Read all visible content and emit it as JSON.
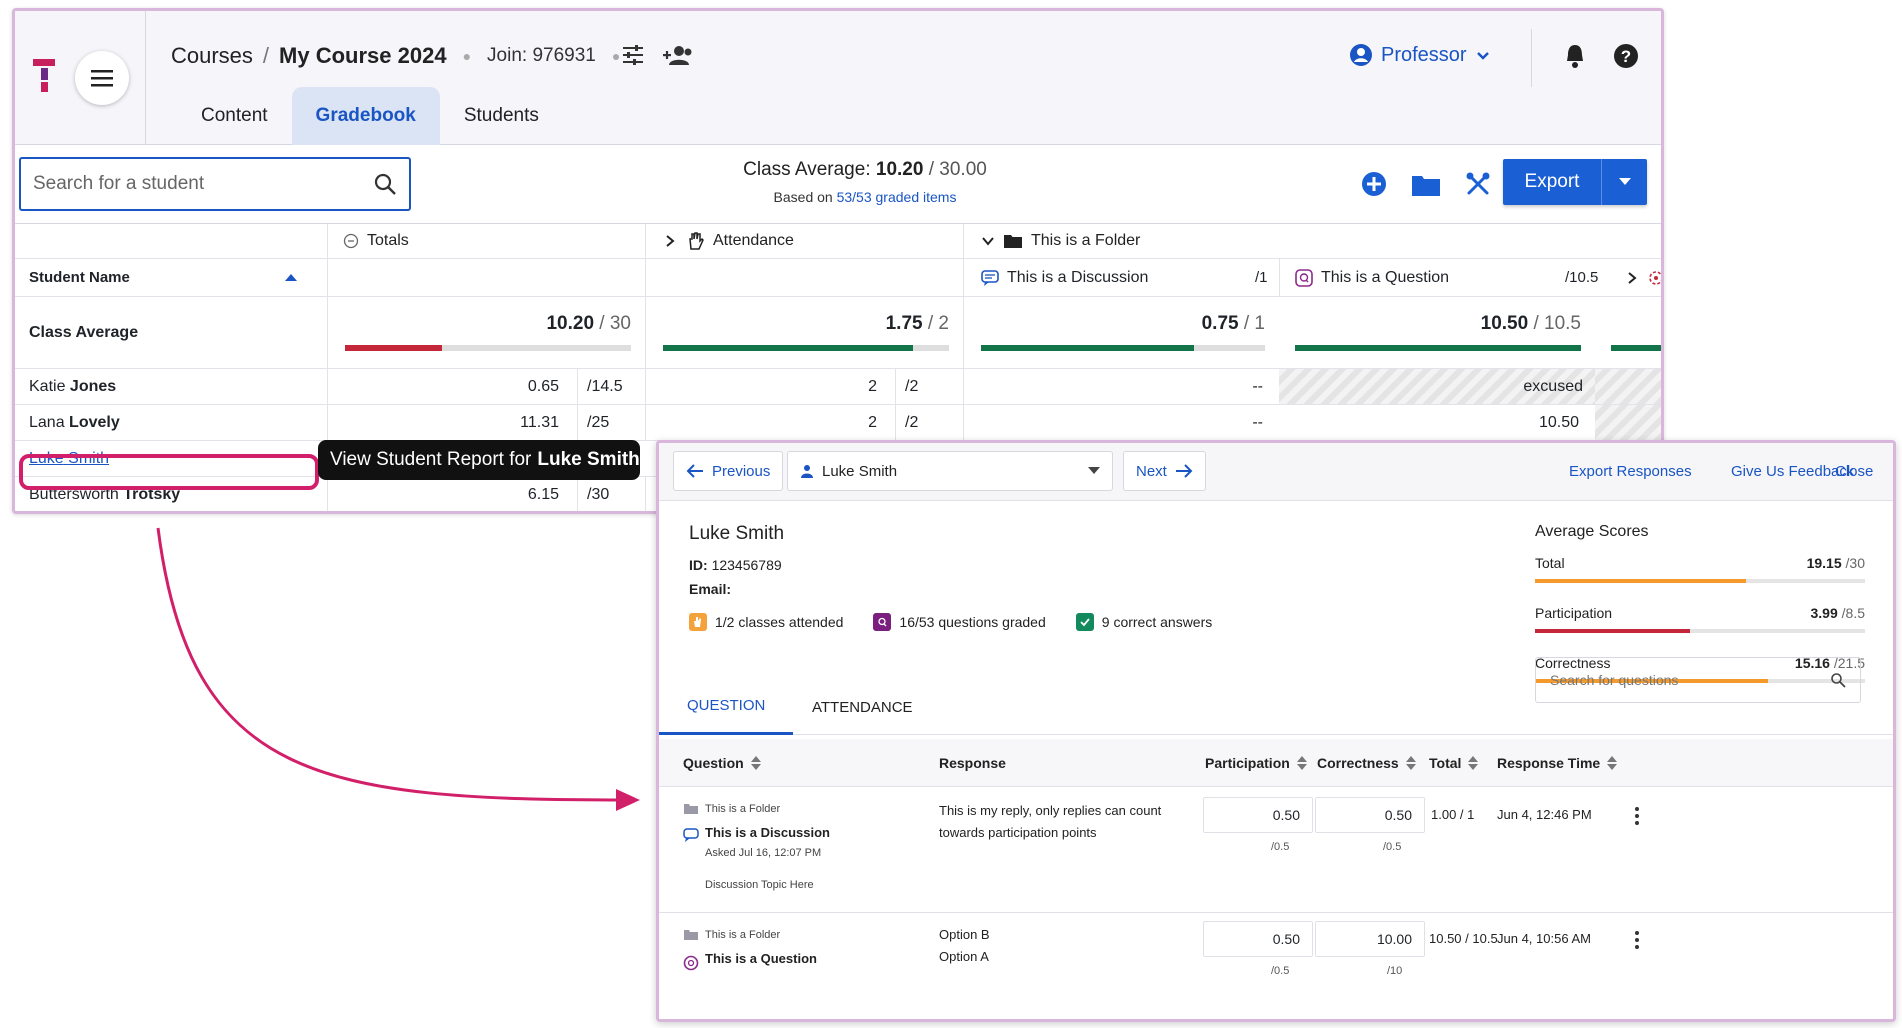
{
  "header": {
    "breadcrumb_root": "Courses",
    "breadcrumb_sep": "/",
    "breadcrumb_current": "My Course 2024",
    "join_code": "Join: 976931",
    "role": "Professor"
  },
  "tabs": [
    "Content",
    "Gradebook",
    "Students"
  ],
  "toolbar": {
    "search_placeholder": "Search for a student",
    "avg_label": "Class Average:",
    "avg_value": "10.20",
    "avg_max": "/ 30.00",
    "based_on_prefix": "Based on",
    "based_on_link": "53/53 graded items",
    "export_label": "Export"
  },
  "grid": {
    "col_totals": "Totals",
    "col_attendance": "Attendance",
    "col_folder": "This is a Folder",
    "col_student_name": "Student Name",
    "col_discussion": "This is a Discussion",
    "col_discussion_max": "/1",
    "col_question": "This is a Question",
    "col_question_max": "/10.5",
    "class_average_label": "Class Average",
    "avg_totals": "10.20",
    "avg_totals_max": "/ 30",
    "avg_attendance": "1.75",
    "avg_attendance_max": "/ 2",
    "avg_discussion": "0.75",
    "avg_discussion_max": "/ 1",
    "avg_question": "10.50",
    "avg_question_max": "/ 10.5",
    "bars": {
      "totals": 0.34,
      "attendance": 0.875,
      "discussion": 0.75,
      "question": 1.0
    },
    "students": [
      {
        "first": "Katie",
        "last": "Jones",
        "total": "0.65",
        "total_max": "/14.5",
        "att": "2",
        "att_max": "/2",
        "disc": "--",
        "q": "excused"
      },
      {
        "first": "Lana",
        "last": "Lovely",
        "total": "11.31",
        "total_max": "/25",
        "att": "2",
        "att_max": "/2",
        "disc": "--",
        "q": "10.50"
      },
      {
        "first": "Luke",
        "last": "Smith",
        "total": "",
        "total_max": "",
        "att": "",
        "att_max": "",
        "disc": "",
        "q": ""
      },
      {
        "first": "Buttersworth",
        "last": "Trotsky",
        "total": "6.15",
        "total_max": "/30",
        "att": "",
        "att_max": "",
        "disc": "",
        "q": ""
      }
    ],
    "tooltip_prefix": "View Student Report for",
    "tooltip_name": "Luke Smith"
  },
  "report": {
    "previous": "Previous",
    "student_select": "Luke Smith",
    "next": "Next",
    "export_responses": "Export Responses",
    "feedback": "Give Us Feedback",
    "close": "Close",
    "name": "Luke Smith",
    "id_label": "ID:",
    "id_value": "123456789",
    "email_label": "Email:",
    "stat_attended": "1/2 classes attended",
    "stat_graded": "16/53 questions graded",
    "stat_correct": "9 correct answers",
    "scores_title": "Average Scores",
    "scores": [
      {
        "name": "Total",
        "value": "19.15",
        "max": "/30",
        "fraction": 0.64,
        "color": "#f49a2c"
      },
      {
        "name": "Participation",
        "value": "3.99",
        "max": "/8.5",
        "fraction": 0.47,
        "color": "#c4263a"
      },
      {
        "name": "Correctness",
        "value": "15.16",
        "max": "/21.5",
        "fraction": 0.705,
        "color": "#f49a2c"
      }
    ],
    "tab_question": "QUESTION",
    "tab_attendance": "ATTENDANCE",
    "question_search_placeholder": "Search for questions",
    "columns": {
      "question": "Question",
      "response": "Response",
      "participation": "Participation",
      "correctness": "Correctness",
      "total": "Total",
      "response_time": "Response Time"
    },
    "rows": [
      {
        "folder": "This is a Folder",
        "title": "This is a Discussion",
        "asked": "Asked Jul 16, 12:07 PM",
        "topic": "Discussion Topic Here",
        "response_l1": "This is my reply, only replies can count",
        "response_l2": "towards participation points",
        "participation": "0.50",
        "participation_max": "/0.5",
        "correctness": "0.50",
        "correctness_max": "/0.5",
        "total": "1.00 / 1",
        "time": "Jun 4, 12:46 PM"
      },
      {
        "folder": "This is a Folder",
        "title": "This is a Question",
        "response_l1": "Option B",
        "response_l2": "Option A",
        "participation": "0.50",
        "participation_max": "/0.5",
        "correctness": "10.00",
        "correctness_max": "/10",
        "total": "10.50 / 10.5",
        "time": "Jun 4, 10:56 AM"
      }
    ]
  },
  "colors": {
    "accent": "#1a55c4",
    "highlight": "#d21f6a",
    "bar_red": "#c4263a",
    "bar_green": "#13744a"
  }
}
